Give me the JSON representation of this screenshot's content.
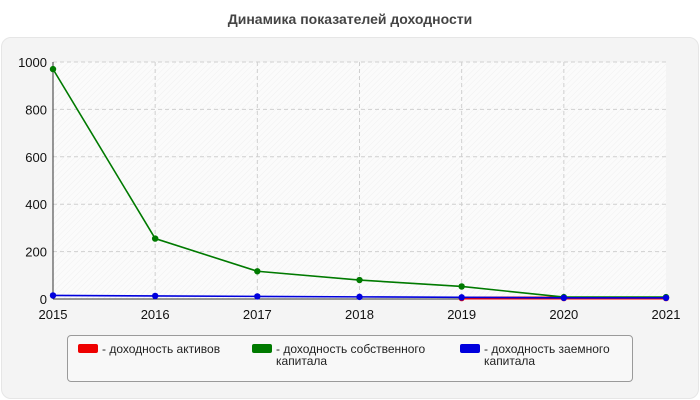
{
  "chart_data": {
    "type": "line",
    "title": "Динамика показателей доходности",
    "xlabel": "",
    "ylabel": "",
    "x": [
      2015,
      2016,
      2017,
      2018,
      2019,
      2020,
      2021
    ],
    "ylim": [
      0,
      1000
    ],
    "yticks": [
      0,
      200,
      400,
      600,
      800,
      1000
    ],
    "grid": true,
    "legend_position": "bottom",
    "series": [
      {
        "name": "- доходность активов",
        "color": "#ee0000",
        "values": [
          null,
          null,
          null,
          null,
          4,
          4,
          4
        ]
      },
      {
        "name": "- доходность собственного капитала",
        "color": "#007a00",
        "values": [
          970,
          255,
          117,
          80,
          53,
          8,
          8
        ]
      },
      {
        "name": "- доходность заемного капитала",
        "color": "#0000dd",
        "values": [
          15,
          13,
          11,
          9,
          7,
          5,
          5
        ]
      }
    ]
  }
}
